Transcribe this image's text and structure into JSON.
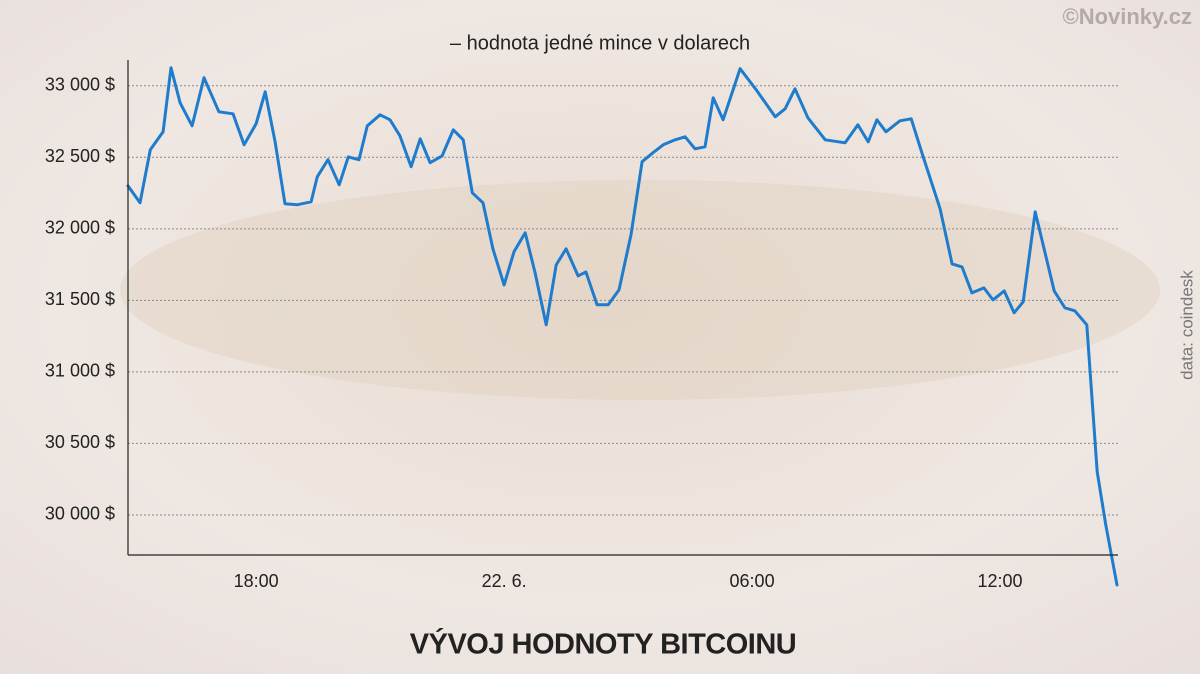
{
  "chart_data": {
    "type": "line",
    "title": "VÝVOJ HODNOTY BITCOINU",
    "subtitle": "– hodnota jedné mince v dolarech",
    "credit": "©Novinky.cz",
    "source": "data: coindesk",
    "color": "#1f7ccc",
    "grid": true,
    "xlim": [
      14.9,
      38.83
    ],
    "xticks": [
      {
        "value": 18,
        "label": "18:00"
      },
      {
        "value": 24,
        "label": "22. 6."
      },
      {
        "value": 30,
        "label": "06:00"
      },
      {
        "value": 36,
        "label": "12:00"
      }
    ],
    "ylim": [
      29720,
      33180
    ],
    "yticks": [
      {
        "value": 30000,
        "label": "30 000 $"
      },
      {
        "value": 30500,
        "label": "30 500 $"
      },
      {
        "value": 31000,
        "label": "31 000 $"
      },
      {
        "value": 31500,
        "label": "31 500 $"
      },
      {
        "value": 32000,
        "label": "32 000 $"
      },
      {
        "value": 32500,
        "label": "32 500 $"
      },
      {
        "value": 33000,
        "label": "33 000 $"
      }
    ],
    "x": [
      14.9,
      15.19,
      15.44,
      15.75,
      15.94,
      16.16,
      16.45,
      16.74,
      17.1,
      17.44,
      17.71,
      18.0,
      18.22,
      18.46,
      18.7,
      18.99,
      19.33,
      19.48,
      19.74,
      20.01,
      20.23,
      20.49,
      20.69,
      21.0,
      21.24,
      21.48,
      21.75,
      21.97,
      22.21,
      22.5,
      22.77,
      23.01,
      23.23,
      23.49,
      23.73,
      24.0,
      24.24,
      24.51,
      24.75,
      25.02,
      25.26,
      25.5,
      25.79,
      25.98,
      26.25,
      26.52,
      26.78,
      27.07,
      27.34,
      27.6,
      27.85,
      28.14,
      28.38,
      28.62,
      28.86,
      29.06,
      29.3,
      29.71,
      30.1,
      30.56,
      30.8,
      31.04,
      31.35,
      31.77,
      32.25,
      32.56,
      32.81,
      33.02,
      33.24,
      33.58,
      33.85,
      34.11,
      34.55,
      34.84,
      35.08,
      35.32,
      35.61,
      35.83,
      36.1,
      36.34,
      36.56,
      36.85,
      37.31,
      37.57,
      37.81,
      38.1,
      38.35,
      38.56,
      38.83
    ],
    "values": [
      32300,
      32182,
      32552,
      32678,
      33126,
      32881,
      32720,
      33056,
      32818,
      32804,
      32587,
      32734,
      32958,
      32608,
      32175,
      32168,
      32189,
      32364,
      32483,
      32308,
      32503,
      32483,
      32720,
      32797,
      32762,
      32650,
      32434,
      32629,
      32462,
      32510,
      32692,
      32622,
      32252,
      32182,
      31860,
      31608,
      31839,
      31972,
      31692,
      31329,
      31748,
      31860,
      31671,
      31699,
      31469,
      31469,
      31573,
      31958,
      32469,
      32531,
      32587,
      32622,
      32643,
      32559,
      32573,
      32916,
      32762,
      33119,
      32972,
      32783,
      32839,
      32979,
      32776,
      32622,
      32601,
      32727,
      32608,
      32762,
      32678,
      32755,
      32769,
      32531,
      32140,
      31755,
      31734,
      31552,
      31587,
      31503,
      31566,
      31413,
      31490,
      32119,
      31566,
      31448,
      31427,
      31329,
      30301,
      29930,
      29510
    ]
  }
}
